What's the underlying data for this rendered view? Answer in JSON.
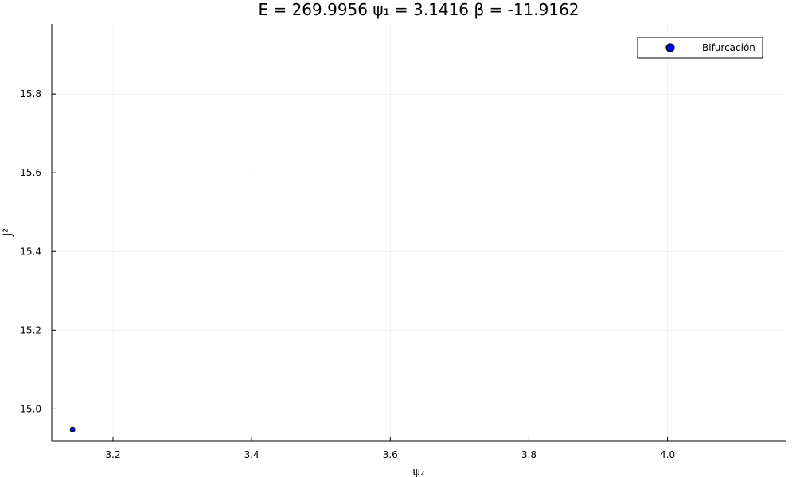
{
  "chart_data": {
    "type": "scatter",
    "title": "E = 269.9956  ψ₁ = 3.1416  β = -11.9162",
    "xlabel": "ψ₂",
    "ylabel": "J²",
    "xlim": [
      3.1116,
      4.1716
    ],
    "ylim": [
      14.918,
      15.978
    ],
    "x_ticks": [
      3.2,
      3.4,
      3.6,
      3.8,
      4.0
    ],
    "x_tick_labels": [
      "3.2",
      "3.4",
      "3.6",
      "3.8",
      "4.0"
    ],
    "y_ticks": [
      15.0,
      15.2,
      15.4,
      15.6,
      15.8
    ],
    "y_tick_labels": [
      "15.0",
      "15.2",
      "15.4",
      "15.6",
      "15.8"
    ],
    "grid": true,
    "legend_position": "top-right",
    "series": [
      {
        "name": "Bifurcación",
        "color": "#0000ff",
        "points": [
          {
            "x": 3.1416,
            "y": 14.9478
          }
        ]
      }
    ]
  }
}
